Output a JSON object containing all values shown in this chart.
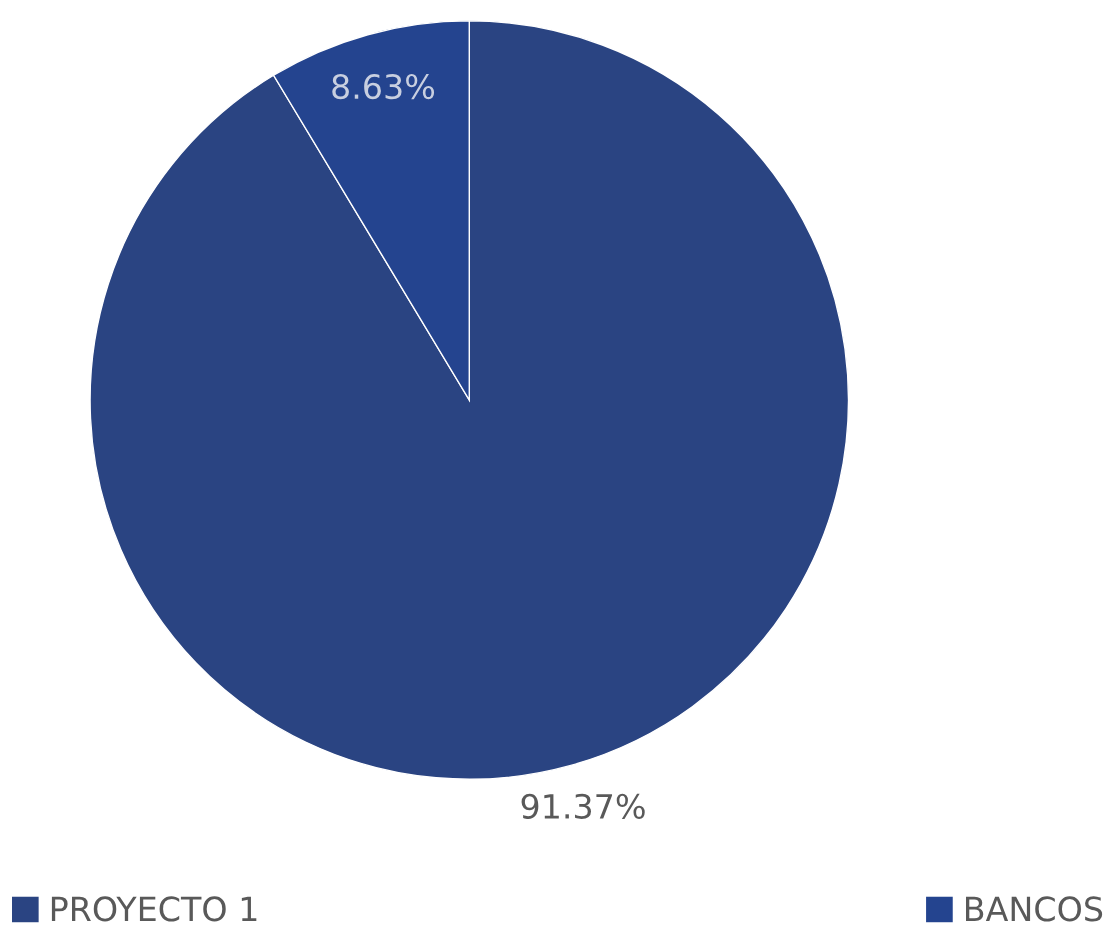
{
  "chart_data": {
    "type": "pie",
    "categories": [
      "PROYECTO 1",
      "BANCOS"
    ],
    "values": [
      91.37,
      8.63
    ],
    "colors": [
      "#2a4482",
      "#24448f"
    ],
    "value_labels": [
      "91.37%",
      "8.63%"
    ],
    "legend": "bottom"
  }
}
